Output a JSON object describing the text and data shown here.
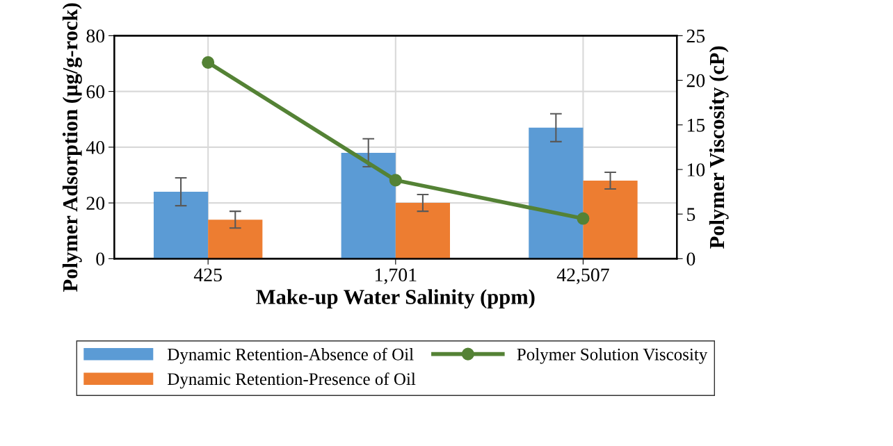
{
  "chart_data": {
    "type": "bar",
    "xlabel": "Make-up Water Salinity (ppm)",
    "ylabel": "Polymer Adsorption (µg/g-rock)",
    "y2label": "Polymer Viscosity (cP)",
    "categories": [
      "425",
      "1,701",
      "42,507"
    ],
    "series": [
      {
        "name": "Dynamic Retention-Absence of Oil",
        "color": "#5b9bd5",
        "values": [
          24,
          38,
          47
        ],
        "errors": [
          5,
          5,
          5
        ]
      },
      {
        "name": "Dynamic Retention-Presence of Oil",
        "color": "#ed7d31",
        "values": [
          14,
          20,
          28
        ],
        "errors": [
          3,
          3,
          3
        ]
      },
      {
        "name": "Polymer Solution Viscosity",
        "type": "line",
        "axis": "y2",
        "color": "#548235",
        "values": [
          22,
          8.8,
          4.5
        ],
        "marker": "circle",
        "line_style": "solid"
      }
    ],
    "ylim": [
      0,
      80
    ],
    "yticks": [
      0,
      20,
      40,
      60,
      80
    ],
    "y2lim": [
      0,
      25
    ],
    "y2ticks": [
      0,
      5,
      10,
      15,
      20,
      25
    ],
    "grid": true,
    "legend": "bottom"
  }
}
